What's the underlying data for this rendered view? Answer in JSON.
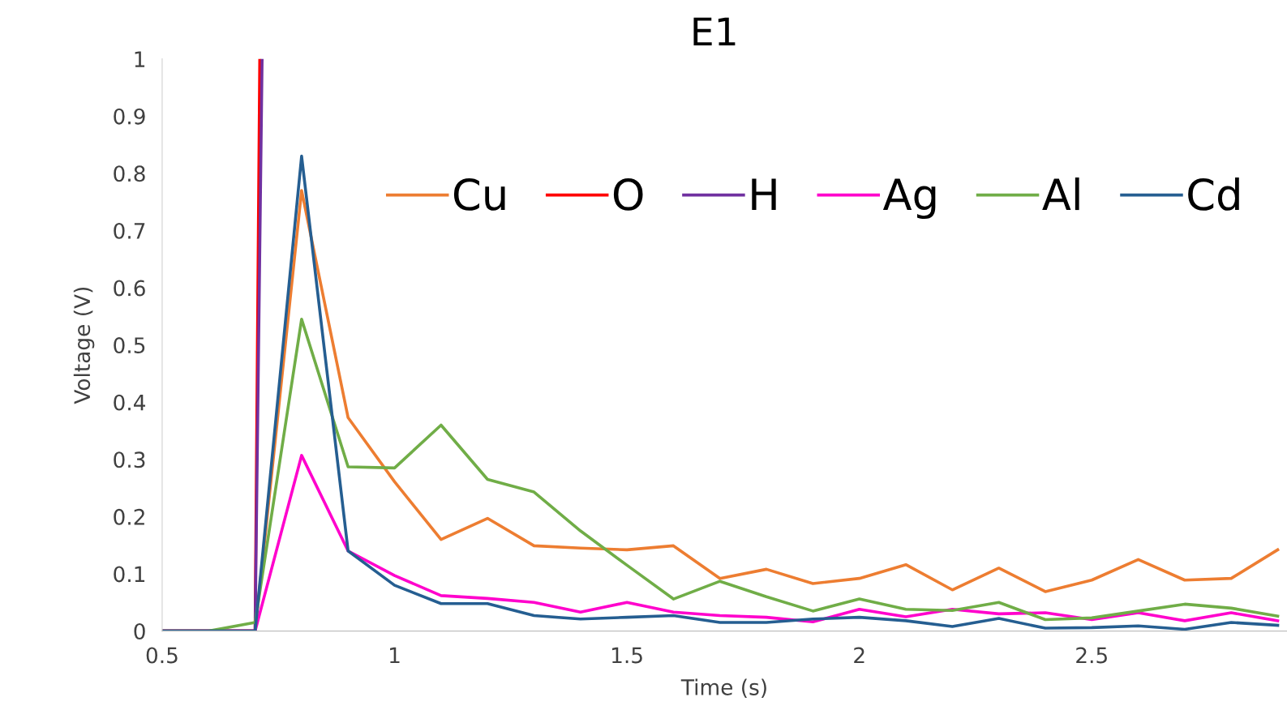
{
  "chart_data": {
    "type": "line",
    "title": "E1",
    "xlabel": "Time (s)",
    "ylabel": "Voltage (V)",
    "xlim": [
      0.5,
      2.92
    ],
    "xticks": [
      0.5,
      1,
      1.5,
      2,
      2.5
    ],
    "ylim": [
      0,
      1
    ],
    "yticks": [
      0,
      0.1,
      0.2,
      0.3,
      0.4,
      0.5,
      0.6,
      0.7,
      0.8,
      0.9,
      1
    ],
    "x": [
      0.5,
      0.6,
      0.7,
      0.8,
      0.9,
      1.0,
      1.1,
      1.2,
      1.3,
      1.4,
      1.5,
      1.6,
      1.7,
      1.8,
      1.9,
      2.0,
      2.1,
      2.2,
      2.3,
      2.4,
      2.5,
      2.6,
      2.7,
      2.8,
      2.9
    ],
    "grid": false,
    "legend": "top right",
    "marker": "none",
    "line_style": "solid",
    "series": [
      {
        "name": "Cu",
        "color": "#ed7d31",
        "values": [
          0,
          0,
          0,
          0.77,
          0.373,
          0.261,
          0.16,
          0.197,
          0.149,
          0.145,
          0.142,
          0.149,
          0.092,
          0.108,
          0.083,
          0.092,
          0.116,
          0.072,
          0.11,
          0.069,
          0.089,
          0.125,
          0.089,
          0.092,
          0.142
        ]
      },
      {
        "name": "O",
        "color": "#ff0000",
        "x": [
          0.5,
          0.6,
          0.7,
          0.71
        ],
        "values": [
          0,
          0,
          0,
          1
        ]
      },
      {
        "name": "H",
        "color": "#7030a0",
        "x": [
          0.5,
          0.6,
          0.7,
          0.715
        ],
        "values": [
          0,
          0,
          0,
          1
        ]
      },
      {
        "name": "Ag",
        "color": "#ff00cc",
        "values": [
          0,
          0,
          0,
          0.307,
          0.14,
          0.097,
          0.062,
          0.057,
          0.05,
          0.033,
          0.05,
          0.033,
          0.027,
          0.024,
          0.016,
          0.038,
          0.025,
          0.038,
          0.03,
          0.032,
          0.02,
          0.032,
          0.018,
          0.032,
          0.018
        ]
      },
      {
        "name": "Al",
        "color": "#70ad47",
        "values": [
          0,
          0,
          0.015,
          0.545,
          0.287,
          0.285,
          0.36,
          0.265,
          0.243,
          0.175,
          0.115,
          0.056,
          0.087,
          0.06,
          0.035,
          0.056,
          0.038,
          0.036,
          0.05,
          0.02,
          0.023,
          0.035,
          0.047,
          0.04,
          0.026
        ]
      },
      {
        "name": "Cd",
        "color": "#255e91",
        "values": [
          0,
          0,
          0,
          0.83,
          0.14,
          0.08,
          0.048,
          0.048,
          0.027,
          0.021,
          0.024,
          0.027,
          0.015,
          0.015,
          0.021,
          0.024,
          0.018,
          0.008,
          0.022,
          0.005,
          0.006,
          0.009,
          0.003,
          0.015,
          0.01
        ]
      }
    ]
  }
}
